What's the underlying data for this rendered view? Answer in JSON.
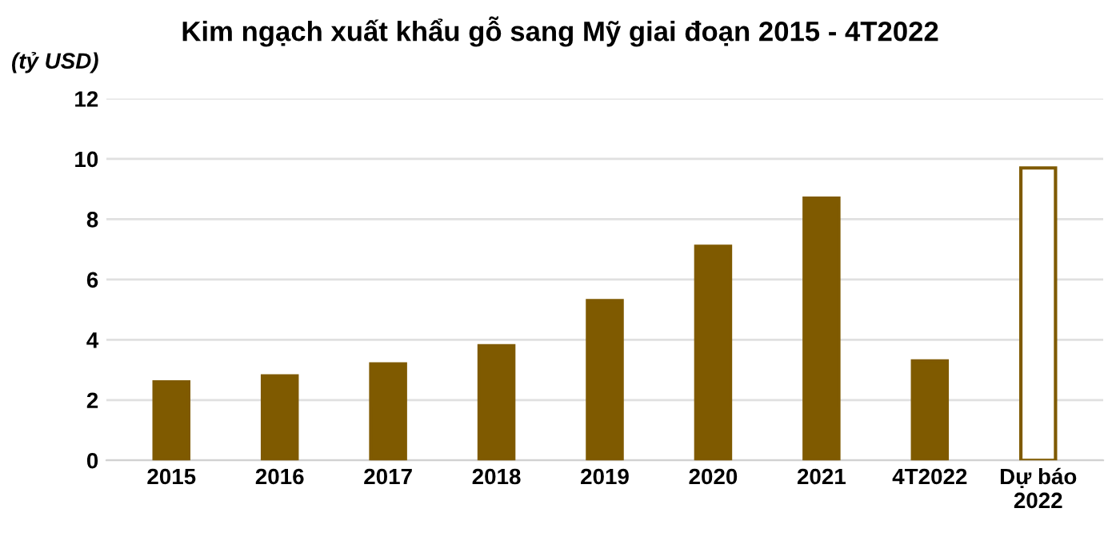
{
  "chart_data": {
    "type": "bar",
    "title": "Kim ngạch xuất khẩu gỗ sang Mỹ giai đoạn 2015 - 4T2022",
    "ylabel": "(tỷ USD)",
    "categories": [
      "2015",
      "2016",
      "2017",
      "2018",
      "2019",
      "2020",
      "2021",
      "4T2022",
      "Dự báo\n2022"
    ],
    "values": [
      2.6,
      2.8,
      3.2,
      3.8,
      5.3,
      7.1,
      8.7,
      3.3,
      9.7
    ],
    "colors": [
      "#7f5a00",
      "#7f5a00",
      "#7f5a00",
      "#7f5a00",
      "#7f5a00",
      "#7f5a00",
      "#7f5a00",
      "#7f5a00",
      "#ffffff"
    ],
    "ylim": [
      0,
      12
    ],
    "yticks": [
      0,
      2,
      4,
      6,
      8,
      10,
      12
    ],
    "grid": "y"
  }
}
